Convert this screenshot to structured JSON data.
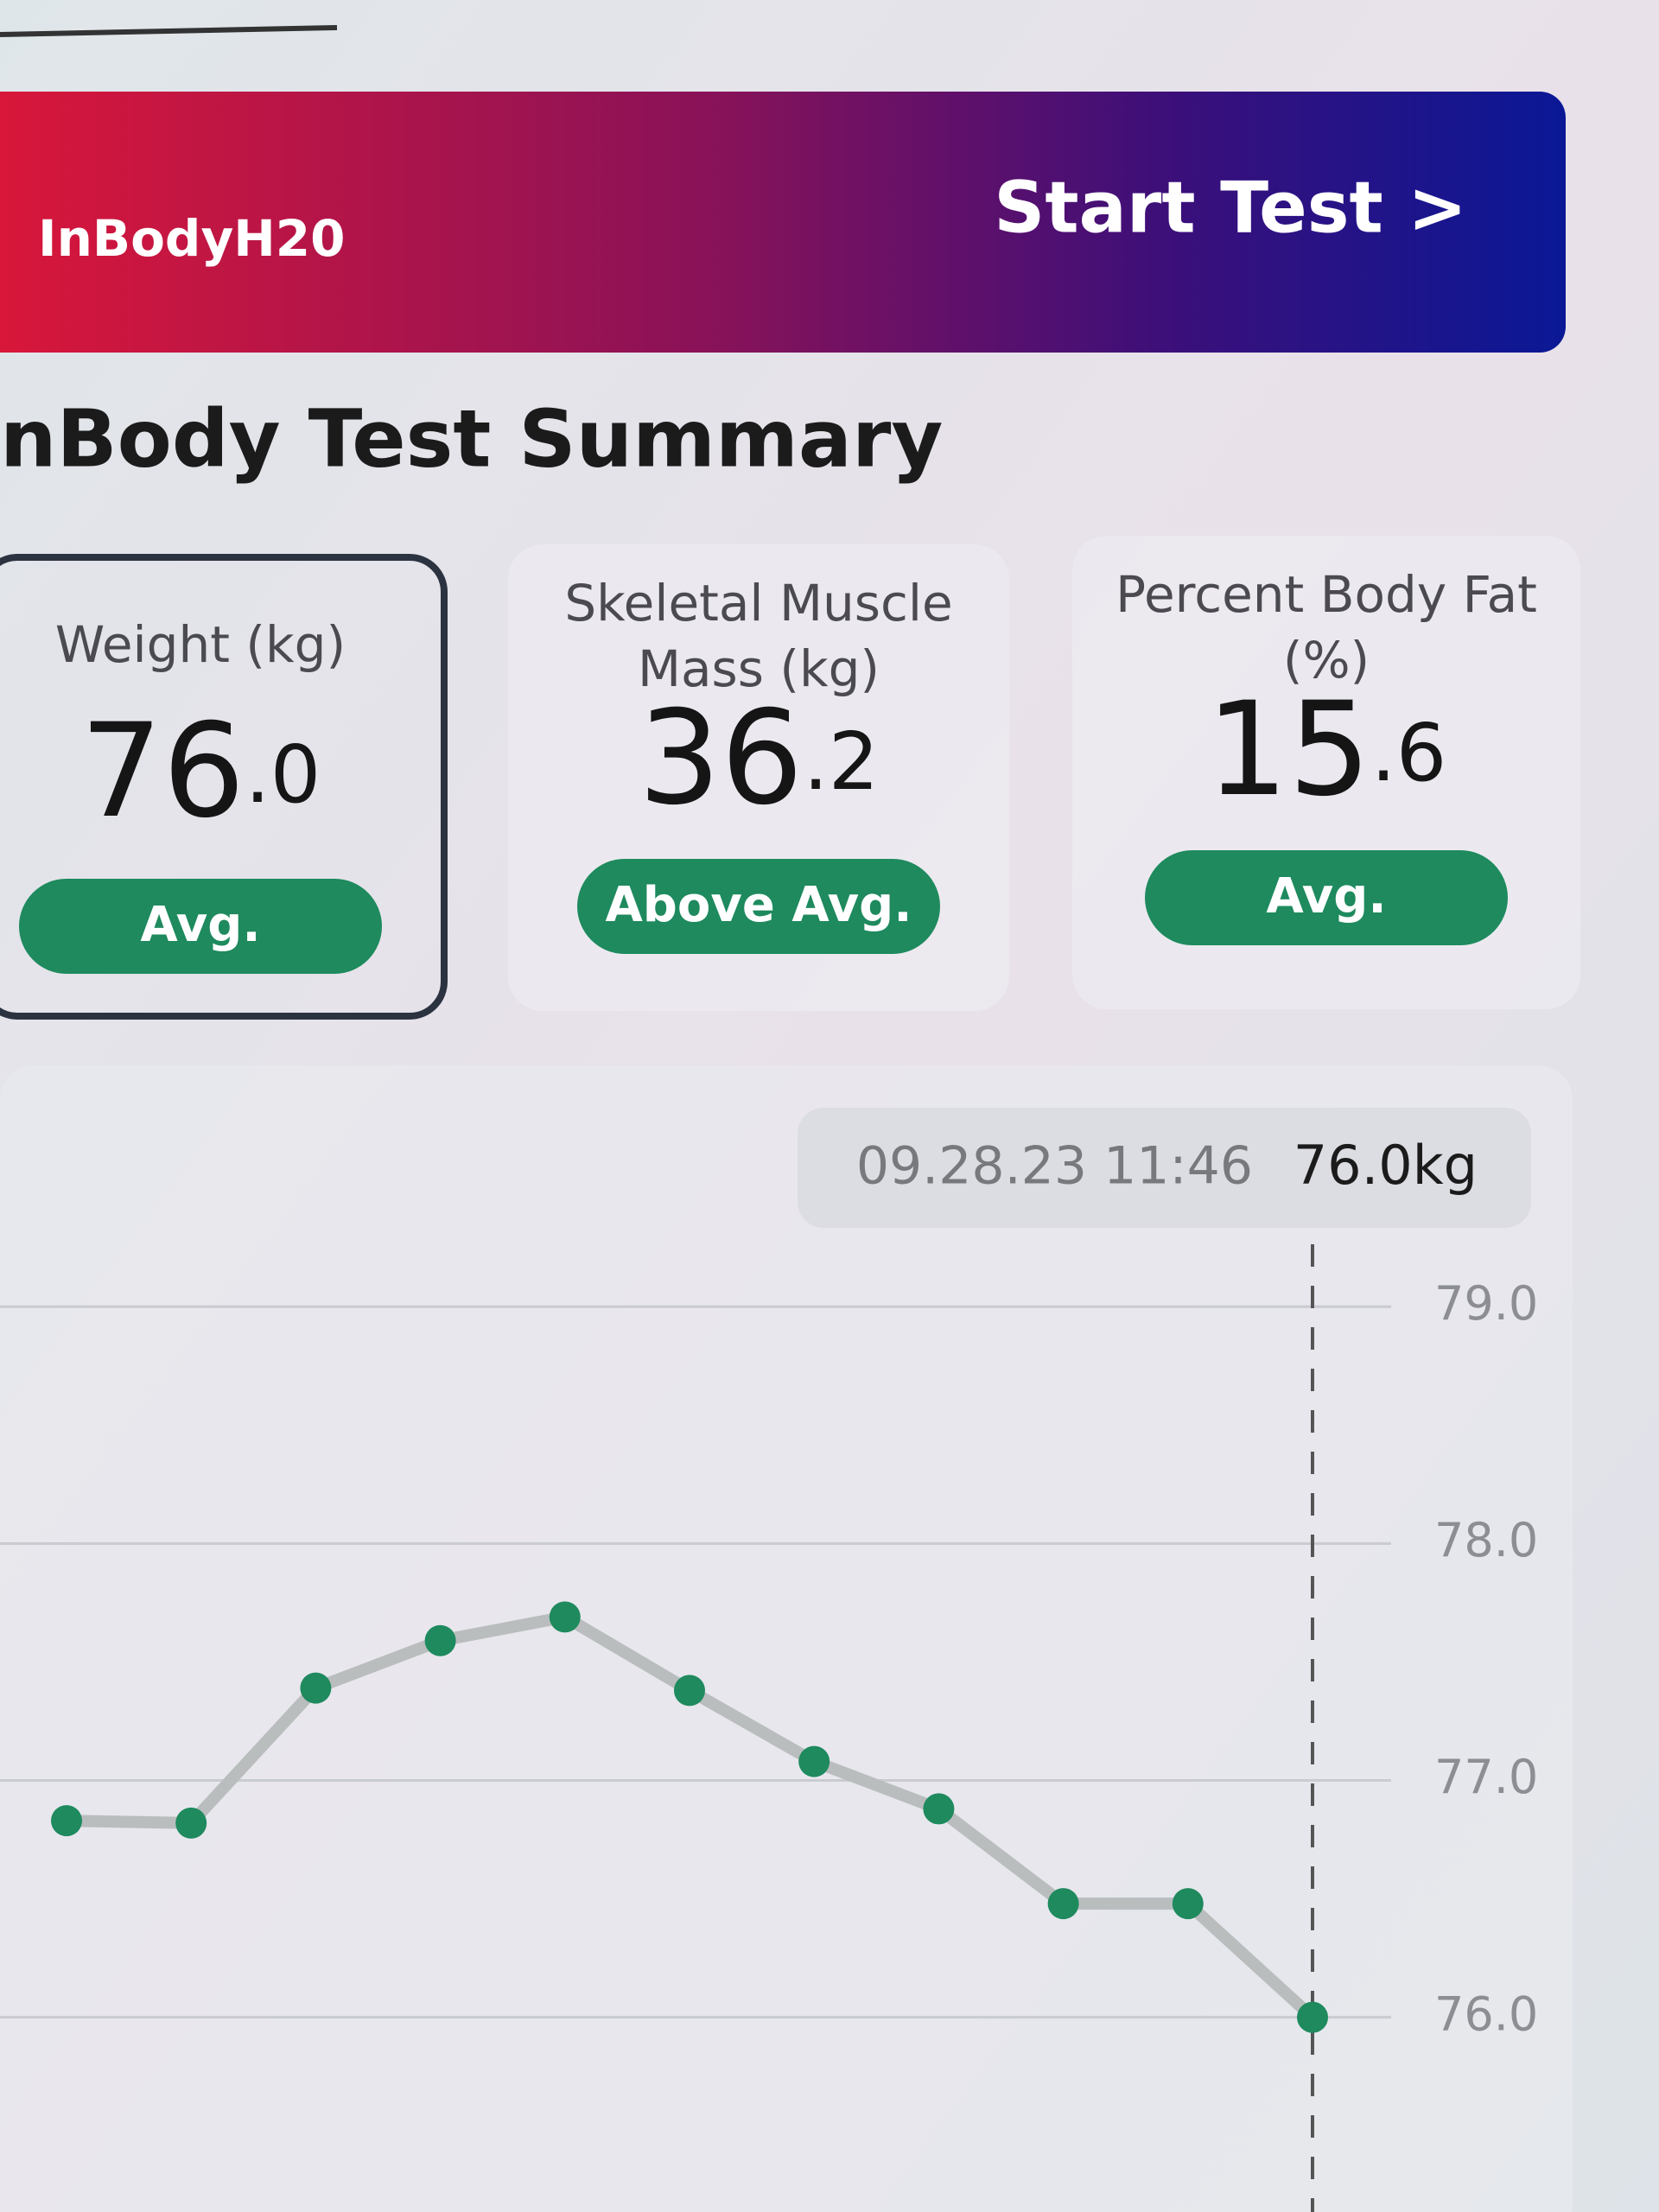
{
  "banner": {
    "brand": "InBodyH20",
    "action": "Start Test >"
  },
  "title": "nBody Test Summary",
  "cards": [
    {
      "label": [
        "Weight (kg)"
      ],
      "value_int": "76",
      "value_dec": ".0",
      "status": "Avg."
    },
    {
      "label": [
        "Skeletal Muscle",
        "Mass (kg)"
      ],
      "value_int": "36",
      "value_dec": ".2",
      "status": "Above Avg."
    },
    {
      "label": [
        "Percent Body Fat",
        "(%)"
      ],
      "value_int": "15",
      "value_dec": ".6",
      "status": "Avg."
    }
  ],
  "chart_data": {
    "type": "line",
    "tooltip": {
      "date": "09.28.23 11:46",
      "value": "76.0kg"
    },
    "values": [
      76.83,
      76.82,
      77.39,
      77.59,
      77.69,
      77.38,
      77.08,
      76.88,
      76.48,
      76.48,
      76.0
    ],
    "color": "#1e8a5e",
    "line_color": "#b9bdbd",
    "ylim": [
      75.2,
      79.3
    ],
    "yticks": [
      {
        "value": 76,
        "label": "76.0"
      },
      {
        "value": 77,
        "label": "77.0"
      },
      {
        "value": 78,
        "label": "78.0"
      },
      {
        "value": 79,
        "label": "79.0"
      }
    ],
    "grid": true
  }
}
